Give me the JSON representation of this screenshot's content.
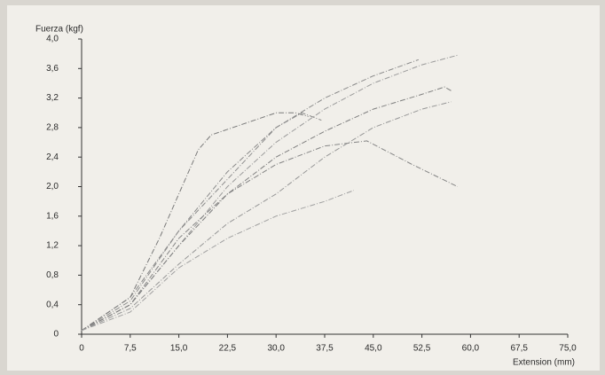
{
  "chart_data": {
    "type": "line",
    "y_label": "Fuerza (kgf)",
    "x_label": "Extension (mm)",
    "xlim": [
      0,
      75
    ],
    "ylim": [
      0,
      4.0
    ],
    "xticks": [
      0,
      {
        "value": 7.5,
        "label": "7,5"
      },
      {
        "value": 15.0,
        "label": "15,0"
      },
      {
        "value": 22.5,
        "label": "22,5"
      },
      {
        "value": 30.0,
        "label": "30,0"
      },
      {
        "value": 37.5,
        "label": "37,5"
      },
      {
        "value": 45.0,
        "label": "45,0"
      },
      {
        "value": 52.5,
        "label": "52,5"
      },
      {
        "value": 60.0,
        "label": "60,0"
      },
      {
        "value": 67.5,
        "label": "67,5"
      },
      {
        "value": 75.0,
        "label": "75,0"
      }
    ],
    "yticks": [
      0,
      {
        "value": 0.4,
        "label": "0,4"
      },
      {
        "value": 0.8,
        "label": "0,8"
      },
      {
        "value": 1.2,
        "label": "1,2"
      },
      {
        "value": 1.6,
        "label": "1,6"
      },
      {
        "value": 2.0,
        "label": "2,0"
      },
      {
        "value": 2.4,
        "label": "2,4"
      },
      {
        "value": 2.8,
        "label": "2,8"
      },
      {
        "value": 3.2,
        "label": "3,2"
      },
      {
        "value": 3.6,
        "label": "3,6"
      },
      {
        "value": 4.0,
        "label": "4,0"
      }
    ],
    "grid": false,
    "series": [
      {
        "color": "#8a8a8a",
        "x": [
          0,
          7.5,
          15,
          22.5,
          30,
          37.5,
          45,
          52
        ],
        "values": [
          0.05,
          0.5,
          1.4,
          2.2,
          2.8,
          3.2,
          3.5,
          3.72
        ]
      },
      {
        "color": "#9a9a9a",
        "x": [
          0,
          7.5,
          15,
          22.5,
          30,
          37.5,
          45,
          52.5,
          58
        ],
        "values": [
          0.05,
          0.4,
          1.2,
          2.0,
          2.6,
          3.05,
          3.4,
          3.65,
          3.78
        ]
      },
      {
        "color": "#7a7a7a",
        "x": [
          0,
          7.5,
          12,
          15,
          18,
          20,
          25,
          30,
          33,
          35
        ],
        "values": [
          0.05,
          0.5,
          1.3,
          1.9,
          2.5,
          2.7,
          2.85,
          3.0,
          3.0,
          2.95
        ]
      },
      {
        "color": "#8d8d8d",
        "x": [
          0,
          7.5,
          15,
          22.5,
          30,
          34,
          37
        ],
        "values": [
          0.05,
          0.45,
          1.4,
          2.1,
          2.8,
          3.0,
          2.9
        ]
      },
      {
        "color": "#858585",
        "x": [
          0,
          7.5,
          15,
          22.5,
          30,
          37.5,
          44,
          51,
          58
        ],
        "values": [
          0.05,
          0.4,
          1.3,
          1.9,
          2.3,
          2.55,
          2.62,
          2.3,
          2.0
        ]
      },
      {
        "color": "#7f7f7f",
        "x": [
          0,
          7.5,
          15,
          22.5,
          30,
          37.5,
          45,
          52.5,
          56,
          57
        ],
        "values": [
          0.05,
          0.4,
          1.2,
          1.9,
          2.4,
          2.75,
          3.05,
          3.25,
          3.35,
          3.3
        ]
      },
      {
        "color": "#969696",
        "x": [
          0,
          7.5,
          15,
          22.5,
          30,
          37.5,
          45,
          52.5,
          57
        ],
        "values": [
          0.05,
          0.35,
          0.95,
          1.5,
          1.9,
          2.4,
          2.8,
          3.05,
          3.15
        ]
      },
      {
        "color": "#a0a0a0",
        "x": [
          0,
          7.5,
          15,
          22.5,
          30,
          37.5,
          42
        ],
        "values": [
          0.05,
          0.3,
          0.9,
          1.3,
          1.6,
          1.8,
          1.95
        ]
      }
    ]
  }
}
